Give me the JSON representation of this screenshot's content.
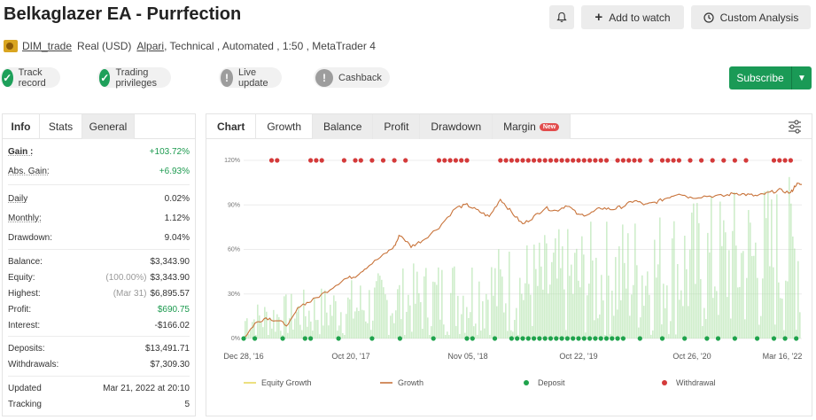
{
  "header": {
    "title": "Belkaglazer EA - Purrfection",
    "watch_label": "Add to watch",
    "custom_label": "Custom Analysis"
  },
  "account": {
    "user": "DIM_trade",
    "type": "Real (USD)",
    "broker": "Alpari",
    "details": ", Technical , Automated , 1:50 , MetaTrader 4"
  },
  "badges": [
    {
      "label": "Track record",
      "status": "ok"
    },
    {
      "label": "Trading privileges",
      "status": "ok"
    },
    {
      "label": "Live update",
      "status": "none"
    },
    {
      "label": "Cashback",
      "status": "none"
    }
  ],
  "subscribe_label": "Subscribe",
  "left_tabs": [
    "Info",
    "Stats",
    "General"
  ],
  "stats": {
    "gain": {
      "label": "Gain :",
      "value": "+103.72%"
    },
    "abs_gain": {
      "label": "Abs. Gain:",
      "value": "+6.93%"
    },
    "daily": {
      "label": "Daily",
      "value": "0.02%"
    },
    "monthly": {
      "label": "Monthly:",
      "value": "1.12%"
    },
    "drawdown": {
      "label": "Drawdown:",
      "value": "9.04%"
    },
    "balance": {
      "label": "Balance:",
      "value": "$3,343.90"
    },
    "equity": {
      "label": "Equity:",
      "note": "(100.00%)",
      "value": "$3,343.90"
    },
    "highest": {
      "label": "Highest:",
      "note": "(Mar 31)",
      "value": "$6,895.57"
    },
    "profit": {
      "label": "Profit:",
      "value": "$690.75"
    },
    "interest": {
      "label": "Interest:",
      "value": "-$166.02"
    },
    "deposits": {
      "label": "Deposits:",
      "value": "$13,491.71"
    },
    "withdrawals": {
      "label": "Withdrawals:",
      "value": "$7,309.30"
    },
    "updated": {
      "label": "Updated",
      "value": "Mar 21, 2022 at 20:10"
    },
    "tracking": {
      "label": "Tracking",
      "value": "5"
    }
  },
  "chart_tabs": [
    "Chart",
    "Growth",
    "Balance",
    "Profit",
    "Drawdown",
    "Margin"
  ],
  "new_badge": "New",
  "colors": {
    "accent_green": "#1a9a56",
    "growth_line": "#c8733a",
    "equity_line": "#e8d860",
    "deposit": "#1fa34c",
    "withdrawal": "#d43a3a",
    "volume_bars": "#a8e0a0"
  },
  "chart_data": {
    "type": "line",
    "title": "",
    "y_ticks": [
      "120%",
      "90%",
      "60%",
      "30%",
      "0%"
    ],
    "ylim": [
      0,
      120
    ],
    "x_ticks": [
      "Dec 28, '16",
      "Oct 20, '17",
      "Nov 05, '18",
      "Oct 22, '19",
      "Oct 26, '20",
      "Mar 16, '22"
    ],
    "legend": [
      "Equity Growth",
      "Growth",
      "Deposit",
      "Withdrawal"
    ],
    "series": [
      {
        "name": "Growth",
        "x": [
          0,
          2,
          4,
          6,
          8,
          10,
          12,
          15,
          18,
          20,
          22,
          25,
          27,
          28,
          30,
          32,
          35,
          38,
          40,
          42,
          44,
          46,
          48,
          50,
          52,
          54,
          56,
          58,
          60,
          62,
          64,
          66,
          68,
          70,
          72,
          74,
          76,
          78,
          80,
          83,
          86,
          88,
          90,
          92,
          94,
          96,
          98,
          99,
          100
        ],
        "y": [
          0,
          10,
          14,
          12,
          9,
          22,
          25,
          32,
          40,
          42,
          48,
          56,
          62,
          70,
          62,
          66,
          75,
          88,
          90,
          86,
          82,
          94,
          85,
          77,
          82,
          88,
          86,
          90,
          83,
          84,
          88,
          87,
          89,
          93,
          90,
          92,
          95,
          98,
          95,
          96,
          96,
          98,
          97,
          96,
          98,
          100,
          98,
          104,
          103.72
        ]
      }
    ],
    "deposit_markers": "bottom row (0%)",
    "withdrawal_markers": "top row (120%)"
  }
}
